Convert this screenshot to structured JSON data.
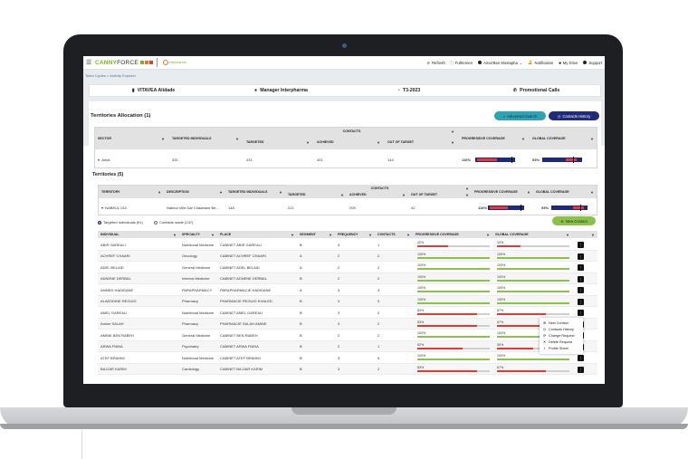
{
  "app": {
    "logo_main": "CANNY",
    "logo_sub": "FORCE",
    "partner": "interpharma",
    "breadcrumb": [
      "Team Cycles",
      "Activity Explorer"
    ],
    "top_actions": [
      {
        "label": "Refresh",
        "icon": "refresh-icon"
      },
      {
        "label": "Fullscreen",
        "icon": "fullscreen-icon"
      },
      {
        "label": "Amal Ben Mustapha",
        "icon": "user-icon"
      },
      {
        "label": "Notification",
        "icon": "bell-icon"
      },
      {
        "label": "My Drive",
        "icon": "folder-icon"
      },
      {
        "label": "Support",
        "icon": "help-icon"
      }
    ]
  },
  "kpis": [
    {
      "label": "VITAVEA Alidade",
      "icon": "chart-icon"
    },
    {
      "label": "Manager Interpharma",
      "icon": "user-circle-icon"
    },
    {
      "label": "T3-2023",
      "icon": "cycle-icon"
    },
    {
      "label": "Promotional Calls",
      "icon": "call-icon"
    }
  ],
  "allocation": {
    "title": "Territories Allocation (1)",
    "btn_search": "Advanced Search",
    "btn_history": "Contacts History",
    "headers": {
      "sector": "SECTOR",
      "targeted_individuals": "TARGETED INDIVIDUALS",
      "contacts": "CONTACTS",
      "targeted": "TARGETED",
      "achieved": "ACHIEVED",
      "out_of_target": "OUT OF TARGET",
      "progressive": "PROGRESSIVE COVERAGE",
      "global": "GLOBAL COVERAGE"
    },
    "row": {
      "sector": "Amal",
      "targeted_individuals": "331",
      "targeted": "431",
      "achieved": "401",
      "out_of_target": "144",
      "progressive": "116%",
      "global": "93%"
    }
  },
  "territories": {
    "title": "Territories (5)",
    "headers": {
      "territory": "TERRITORY",
      "description": "DESCRIPTION",
      "targeted_individuals": "TARGETED INDIVIDUALS",
      "contacts": "CONTACTS",
      "targeted": "TARGETED",
      "achieved": "ACHIEVED",
      "out_of_target": "OUT OF TARGET",
      "progressive": "PROGRESSIVE COVERAGE",
      "global": "GLOBAL COVERAGE"
    },
    "row": {
      "territory": "NABEUL 010",
      "description": "Nabeul Ville Dar Chaabane Be...",
      "targeted_individuals": "148",
      "targeted": "221",
      "achieved": "205",
      "out_of_target": "42",
      "progressive": "116%",
      "global": "93%"
    }
  },
  "filters": {
    "targeted": "Targeted Individuals (91)",
    "contacts_made": "Contacts made (247)",
    "new_contact": "New Contact"
  },
  "grid": {
    "headers": [
      "INDIVIDUAL",
      "SPECIALTY",
      "PLACE",
      "SEGMENT",
      "FREQUENCY",
      "CONTACTS",
      "PROGRESSIVE COVERAGE",
      "GLOBAL COVERAGE"
    ],
    "rows": [
      {
        "name": "ABIR GAREALI",
        "specialty": "Nutritional Medicine",
        "place": "CABINET ABIR GAREALI",
        "segment": "B",
        "frequency": "3",
        "contacts": "1",
        "prog": "42%",
        "prog_v": 42,
        "glob": "33%",
        "glob_v": 33
      },
      {
        "name": "ACHREF CHAARI",
        "specialty": "Oncology",
        "place": "CABINET ACHREF CHAARI",
        "segment": "A",
        "frequency": "2",
        "contacts": "2",
        "prog": "100%",
        "prog_v": 100,
        "glob": "100%",
        "glob_v": 100
      },
      {
        "name": "ADEL BELAID",
        "specialty": "General Medicine",
        "place": "CABINET ADEL BELAID",
        "segment": "A",
        "frequency": "2",
        "contacts": "2",
        "prog": "100%",
        "prog_v": 100,
        "glob": "100%",
        "glob_v": 100
      },
      {
        "name": "ADNENE DERBAL",
        "specialty": "Internal Medicine",
        "place": "CABINET ADNENE DERBAL",
        "segment": "B",
        "frequency": "2",
        "contacts": "2",
        "prog": "100%",
        "prog_v": 100,
        "glob": "100%",
        "glob_v": 100
      },
      {
        "name": "AHMED HADIDANE",
        "specialty": "PARAPHARMACY",
        "place": "PARAPHARMACIE HADIDANE",
        "segment": "A",
        "frequency": "3",
        "contacts": "3",
        "prog": "100%",
        "prog_v": 100,
        "glob": "100%",
        "glob_v": 100
      },
      {
        "name": "ALAEDDINE REGUIG",
        "specialty": "Pharmacy",
        "place": "PHARMACIE REGUIG KHALED",
        "segment": "B",
        "frequency": "3",
        "contacts": "3",
        "prog": "100%",
        "prog_v": 100,
        "glob": "100%",
        "glob_v": 100
      },
      {
        "name": "AMEL GAREALI",
        "specialty": "Nutritional Medicine",
        "place": "CABINET AMEL GAREALI",
        "segment": "B",
        "frequency": "3",
        "contacts": "2",
        "prog": "83%",
        "prog_v": 83,
        "glob": "67%",
        "glob_v": 67
      },
      {
        "name": "Amine SALAH",
        "specialty": "Pharmacy",
        "place": "PHARMACIE SALAH AMINE",
        "segment": "B",
        "frequency": "3",
        "contacts": "2",
        "prog": "83%",
        "prog_v": 83,
        "glob": "67%",
        "glob_v": 67
      },
      {
        "name": "AMINE BEN RABEH",
        "specialty": "General Medicine",
        "place": "CABINET BEN RABEH",
        "segment": "B",
        "frequency": "2",
        "contacts": "2",
        "prog": "100%",
        "prog_v": 100,
        "glob": "100%",
        "glob_v": 100
      },
      {
        "name": "ARWA FNINA",
        "specialty": "Psychiatry",
        "place": "CABINET ARWA FNINA",
        "segment": "B",
        "frequency": "2",
        "contacts": "1",
        "prog": "62%",
        "prog_v": 62,
        "glob": "50%",
        "glob_v": 50
      },
      {
        "name": "ATEF BRAHIM",
        "specialty": "Nutritional Medicine",
        "place": "CABINET ATEF BRAHIM",
        "segment": "B",
        "frequency": "3",
        "contacts": "3",
        "prog": "100%",
        "prog_v": 100,
        "glob": "100%",
        "glob_v": 100
      },
      {
        "name": "BAJJAR KARIM",
        "specialty": "Cardiology",
        "place": "CABINET BAJJAR KARIM",
        "segment": "B",
        "frequency": "3",
        "contacts": "2",
        "prog": "83%",
        "prog_v": 83,
        "glob": "67%",
        "glob_v": 67
      }
    ]
  },
  "context_menu": [
    {
      "label": "New Contact",
      "icon": "plus-circle-icon"
    },
    {
      "label": "Contacts History",
      "icon": "history-icon"
    },
    {
      "label": "Change Request",
      "icon": "edit-icon"
    },
    {
      "label": "Delete Request",
      "icon": "delete-icon"
    },
    {
      "label": "Profile Sheet",
      "icon": "profile-icon"
    }
  ],
  "colors": {
    "navy": "#1f2a7a",
    "green": "#8bc34a",
    "red": "#e53935",
    "teal": "#2fa3b4"
  }
}
